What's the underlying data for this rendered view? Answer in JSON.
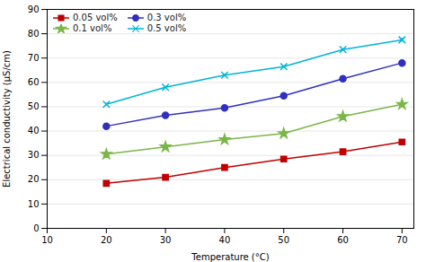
{
  "chart_data": {
    "type": "line",
    "x": [
      20,
      30,
      40,
      50,
      60,
      70
    ],
    "series": [
      {
        "name": "0.05 vol%",
        "color": "#c00000",
        "marker": "square",
        "values": [
          18.5,
          21.0,
          25.0,
          28.5,
          31.5,
          35.5
        ],
        "yerr": [
          0.4,
          0.4,
          0.4,
          0.4,
          0.4,
          0.4
        ]
      },
      {
        "name": "0.1 vol%",
        "color": "#7ab648",
        "marker": "star",
        "values": [
          30.5,
          33.5,
          36.5,
          39.0,
          46.0,
          51.0
        ],
        "yerr": [
          0.4,
          0.7,
          0.4,
          0.4,
          1.0,
          0.4
        ]
      },
      {
        "name": "0.3 vol%",
        "color": "#3030c0",
        "marker": "circle",
        "values": [
          42.0,
          46.5,
          49.5,
          54.5,
          61.5,
          68.0
        ],
        "yerr": [
          0.4,
          0.4,
          0.4,
          0.4,
          0.4,
          0.4
        ]
      },
      {
        "name": "0.5 vol%",
        "color": "#00b4d8",
        "marker": "x",
        "values": [
          51.0,
          58.0,
          63.0,
          66.5,
          73.5,
          77.5
        ],
        "yerr": [
          0.4,
          0.4,
          0.4,
          0.4,
          0.4,
          0.7
        ]
      }
    ],
    "xlabel": "Temperature (°C)",
    "ylabel": "Electrical conductivity (µS/cm)",
    "xlim": [
      10,
      72
    ],
    "ylim": [
      0,
      90
    ],
    "xticks": [
      10,
      20,
      30,
      40,
      50,
      60,
      70
    ],
    "yticks": [
      0,
      10,
      20,
      30,
      40,
      50,
      60,
      70,
      80,
      90
    ],
    "grid": true,
    "legend": "upper left"
  }
}
